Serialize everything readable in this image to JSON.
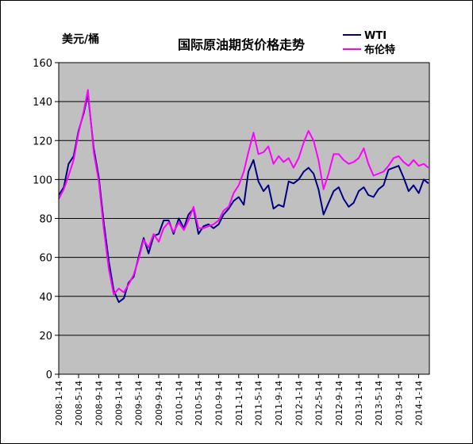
{
  "chart_data": {
    "type": "line",
    "title": "国际原油期货价格走势",
    "ylabel": "美元/桶",
    "xlabel": "",
    "ylim": [
      0,
      160
    ],
    "yticks": [
      "0",
      "20",
      "40",
      "60",
      "80",
      "100",
      "120",
      "140",
      "160"
    ],
    "xticks": [
      "2008-1-14",
      "2008-5-14",
      "2008-9-14",
      "2009-1-14",
      "2009-5-14",
      "2009-9-14",
      "2010-1-14",
      "2010-5-14",
      "2010-9-14",
      "2011-1-14",
      "2011-5-14",
      "2011-9-14",
      "2012-1-14",
      "2012-5-14",
      "2012-9-14",
      "2013-1-14",
      "2013-5-14",
      "2013-9-14",
      "2014-1-14"
    ],
    "grid": "horizontal",
    "legend_position": "top-right",
    "colors": {
      "plot_bg": "#c0c0c0",
      "wti": "#000080",
      "brent": "#ff00ff"
    },
    "series": [
      {
        "name": "WTI",
        "color": "#000080",
        "points": [
          [
            "2008-01-14",
            92
          ],
          [
            "2008-02-14",
            96
          ],
          [
            "2008-03-14",
            108
          ],
          [
            "2008-04-14",
            112
          ],
          [
            "2008-05-14",
            125
          ],
          [
            "2008-06-14",
            134
          ],
          [
            "2008-07-10",
            144
          ],
          [
            "2008-08-14",
            116
          ],
          [
            "2008-09-14",
            101
          ],
          [
            "2008-10-14",
            78
          ],
          [
            "2008-11-14",
            58
          ],
          [
            "2008-12-14",
            43
          ],
          [
            "2009-01-14",
            37
          ],
          [
            "2009-02-14",
            39
          ],
          [
            "2009-03-14",
            47
          ],
          [
            "2009-04-14",
            50
          ],
          [
            "2009-05-14",
            60
          ],
          [
            "2009-06-14",
            70
          ],
          [
            "2009-07-14",
            62
          ],
          [
            "2009-08-14",
            71
          ],
          [
            "2009-09-14",
            72
          ],
          [
            "2009-10-14",
            79
          ],
          [
            "2009-11-14",
            79
          ],
          [
            "2009-12-14",
            72
          ],
          [
            "2010-01-14",
            80
          ],
          [
            "2010-02-14",
            75
          ],
          [
            "2010-03-14",
            82
          ],
          [
            "2010-04-14",
            85
          ],
          [
            "2010-05-14",
            72
          ],
          [
            "2010-06-14",
            76
          ],
          [
            "2010-07-14",
            77
          ],
          [
            "2010-08-14",
            75
          ],
          [
            "2010-09-14",
            77
          ],
          [
            "2010-10-14",
            82
          ],
          [
            "2010-11-14",
            85
          ],
          [
            "2010-12-14",
            89
          ],
          [
            "2011-01-14",
            91
          ],
          [
            "2011-02-14",
            87
          ],
          [
            "2011-03-14",
            104
          ],
          [
            "2011-04-14",
            110
          ],
          [
            "2011-05-14",
            99
          ],
          [
            "2011-06-14",
            94
          ],
          [
            "2011-07-14",
            97
          ],
          [
            "2011-08-14",
            85
          ],
          [
            "2011-09-14",
            87
          ],
          [
            "2011-10-14",
            86
          ],
          [
            "2011-11-14",
            99
          ],
          [
            "2011-12-14",
            98
          ],
          [
            "2012-01-14",
            100
          ],
          [
            "2012-02-14",
            104
          ],
          [
            "2012-03-14",
            106
          ],
          [
            "2012-04-14",
            103
          ],
          [
            "2012-05-14",
            95
          ],
          [
            "2012-06-14",
            82
          ],
          [
            "2012-07-14",
            88
          ],
          [
            "2012-08-14",
            94
          ],
          [
            "2012-09-14",
            96
          ],
          [
            "2012-10-14",
            90
          ],
          [
            "2012-11-14",
            86
          ],
          [
            "2012-12-14",
            88
          ],
          [
            "2013-01-14",
            94
          ],
          [
            "2013-02-14",
            96
          ],
          [
            "2013-03-14",
            92
          ],
          [
            "2013-04-14",
            91
          ],
          [
            "2013-05-14",
            95
          ],
          [
            "2013-06-14",
            97
          ],
          [
            "2013-07-14",
            105
          ],
          [
            "2013-08-14",
            106
          ],
          [
            "2013-09-14",
            107
          ],
          [
            "2013-10-14",
            101
          ],
          [
            "2013-11-14",
            94
          ],
          [
            "2013-12-14",
            97
          ],
          [
            "2014-01-14",
            93
          ],
          [
            "2014-02-14",
            100
          ],
          [
            "2014-03-14",
            98
          ]
        ]
      },
      {
        "name": "布伦特",
        "color": "#ff00ff",
        "points": [
          [
            "2008-01-14",
            90
          ],
          [
            "2008-02-14",
            95
          ],
          [
            "2008-03-14",
            102
          ],
          [
            "2008-04-14",
            110
          ],
          [
            "2008-05-14",
            124
          ],
          [
            "2008-06-14",
            135
          ],
          [
            "2008-07-10",
            146
          ],
          [
            "2008-08-14",
            114
          ],
          [
            "2008-09-14",
            99
          ],
          [
            "2008-10-14",
            75
          ],
          [
            "2008-11-14",
            54
          ],
          [
            "2008-12-14",
            41
          ],
          [
            "2009-01-14",
            44
          ],
          [
            "2009-02-14",
            42
          ],
          [
            "2009-03-14",
            46
          ],
          [
            "2009-04-14",
            51
          ],
          [
            "2009-05-14",
            59
          ],
          [
            "2009-06-14",
            69
          ],
          [
            "2009-07-14",
            65
          ],
          [
            "2009-08-14",
            72
          ],
          [
            "2009-09-14",
            68
          ],
          [
            "2009-10-14",
            75
          ],
          [
            "2009-11-14",
            78
          ],
          [
            "2009-12-14",
            73
          ],
          [
            "2010-01-14",
            78
          ],
          [
            "2010-02-14",
            74
          ],
          [
            "2010-03-14",
            79
          ],
          [
            "2010-04-14",
            86
          ],
          [
            "2010-05-14",
            75
          ],
          [
            "2010-06-14",
            75
          ],
          [
            "2010-07-14",
            76
          ],
          [
            "2010-08-14",
            77
          ],
          [
            "2010-09-14",
            79
          ],
          [
            "2010-10-14",
            84
          ],
          [
            "2010-11-14",
            86
          ],
          [
            "2010-12-14",
            93
          ],
          [
            "2011-01-14",
            97
          ],
          [
            "2011-02-14",
            104
          ],
          [
            "2011-03-14",
            114
          ],
          [
            "2011-04-14",
            124
          ],
          [
            "2011-05-14",
            113
          ],
          [
            "2011-06-14",
            114
          ],
          [
            "2011-07-14",
            117
          ],
          [
            "2011-08-14",
            108
          ],
          [
            "2011-09-14",
            112
          ],
          [
            "2011-10-14",
            109
          ],
          [
            "2011-11-14",
            111
          ],
          [
            "2011-12-14",
            106
          ],
          [
            "2012-01-14",
            111
          ],
          [
            "2012-02-14",
            119
          ],
          [
            "2012-03-14",
            125
          ],
          [
            "2012-04-14",
            120
          ],
          [
            "2012-05-14",
            110
          ],
          [
            "2012-06-14",
            95
          ],
          [
            "2012-07-14",
            103
          ],
          [
            "2012-08-14",
            113
          ],
          [
            "2012-09-14",
            113
          ],
          [
            "2012-10-14",
            110
          ],
          [
            "2012-11-14",
            108
          ],
          [
            "2012-12-14",
            109
          ],
          [
            "2013-01-14",
            111
          ],
          [
            "2013-02-14",
            116
          ],
          [
            "2013-03-14",
            108
          ],
          [
            "2013-04-14",
            102
          ],
          [
            "2013-05-14",
            103
          ],
          [
            "2013-06-14",
            104
          ],
          [
            "2013-07-14",
            107
          ],
          [
            "2013-08-14",
            111
          ],
          [
            "2013-09-14",
            112
          ],
          [
            "2013-10-14",
            109
          ],
          [
            "2013-11-14",
            107
          ],
          [
            "2013-12-14",
            110
          ],
          [
            "2014-01-14",
            107
          ],
          [
            "2014-02-14",
            108
          ],
          [
            "2014-03-14",
            106
          ]
        ]
      }
    ]
  }
}
